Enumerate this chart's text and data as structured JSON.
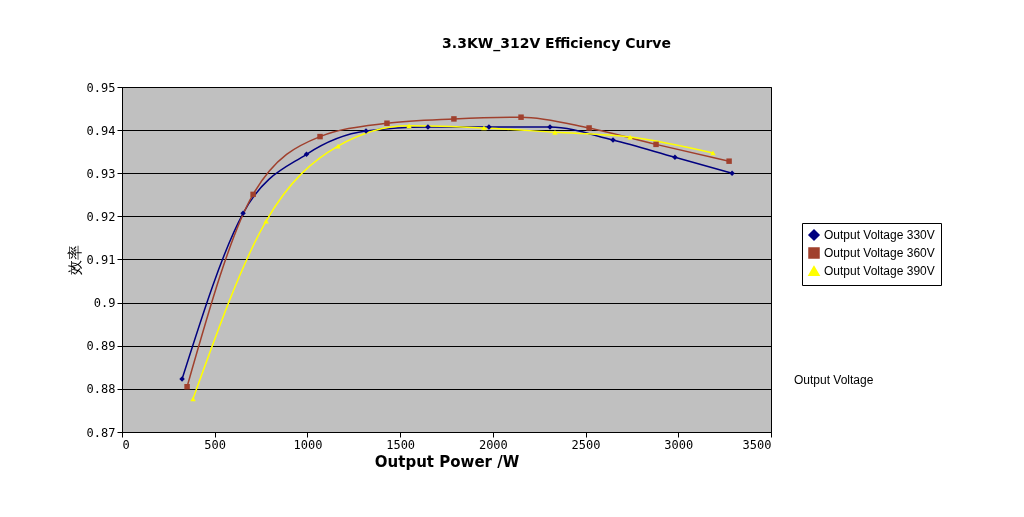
{
  "chart_data": {
    "type": "line",
    "title": "3.3KW_312V Efficiency Curve",
    "xlabel": "Output Power /W",
    "ylabel": "效率",
    "annotations": [
      "Output Voltage"
    ],
    "xlim": [
      0,
      3500
    ],
    "xticks": [
      0,
      500,
      1000,
      1500,
      2000,
      2500,
      3000,
      3500
    ],
    "ylim": [
      0.87,
      0.95
    ],
    "yticks": [
      {
        "value": 0.87,
        "label": "0.87"
      },
      {
        "value": 0.88,
        "label": "0.88"
      },
      {
        "value": 0.89,
        "label": "0.89"
      },
      {
        "value": 0.9,
        "label": "0.9"
      },
      {
        "value": 0.91,
        "label": "0.91"
      },
      {
        "value": 0.92,
        "label": "0.92"
      },
      {
        "value": 0.93,
        "label": "0.93"
      },
      {
        "value": 0.94,
        "label": "0.94"
      },
      {
        "value": 0.95,
        "label": "0.95"
      }
    ],
    "grid": "y",
    "legend": "right",
    "series": [
      {
        "name": "Output Voltage 330V",
        "color": "#000080",
        "marker": "diamond",
        "x": [
          324,
          653,
          995,
          1316,
          1650,
          1979,
          2308,
          2648,
          2982,
          3290
        ],
        "values": [
          0.8823,
          0.9207,
          0.9344,
          0.9398,
          0.9407,
          0.9407,
          0.9407,
          0.9377,
          0.9337,
          0.93
        ]
      },
      {
        "name": "Output Voltage 360V",
        "color": "#a0402d",
        "marker": "square",
        "x": [
          351,
          707,
          1068,
          1429,
          1790,
          2152,
          2519,
          2880,
          3274
        ],
        "values": [
          0.8805,
          0.9251,
          0.9385,
          0.9416,
          0.9426,
          0.943,
          0.9405,
          0.9367,
          0.9328
        ]
      },
      {
        "name": "Output Voltage 390V",
        "color": "#ffff00",
        "marker": "triangle",
        "x": [
          383,
          777,
          1165,
          1548,
          1952,
          2335,
          2740,
          3187
        ],
        "values": [
          0.8777,
          0.9189,
          0.9363,
          0.941,
          0.9405,
          0.9395,
          0.9384,
          0.9347
        ]
      }
    ]
  }
}
